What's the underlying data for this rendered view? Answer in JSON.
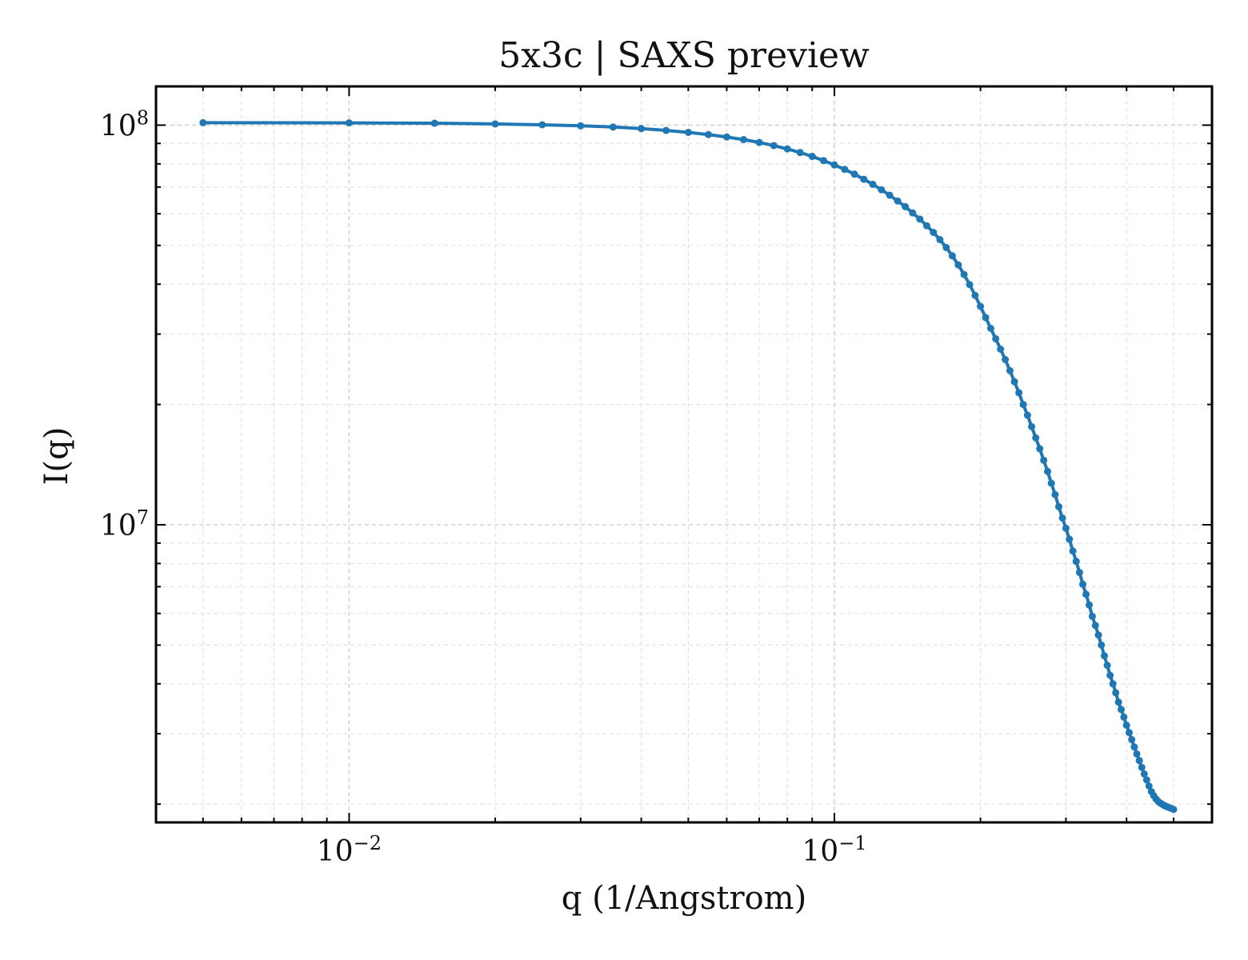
{
  "chart_data": {
    "type": "line",
    "title": "5x3c | SAXS preview",
    "xlabel": "q (1/Angstrom)",
    "ylabel": "I(q)",
    "xscale": "log",
    "yscale": "log",
    "xlim": [
      0.004,
      0.6
    ],
    "ylim": [
      1800000,
      125000000
    ],
    "grid": true,
    "color": "#1f77b4",
    "x_tick_labels": [
      {
        "base": "10",
        "exp": "−2",
        "value": 0.01
      },
      {
        "base": "10",
        "exp": "−1",
        "value": 0.1
      }
    ],
    "y_tick_labels": [
      {
        "base": "10",
        "exp": "8",
        "value": 100000000
      },
      {
        "base": "10",
        "exp": "7",
        "value": 10000000
      }
    ],
    "x": [
      0.005,
      0.01,
      0.015,
      0.02,
      0.025,
      0.03,
      0.035,
      0.04,
      0.045,
      0.05,
      0.055,
      0.06,
      0.065,
      0.07,
      0.075,
      0.08,
      0.085,
      0.09,
      0.095,
      0.1,
      0.105,
      0.11,
      0.115,
      0.12,
      0.125,
      0.13,
      0.135,
      0.14,
      0.145,
      0.15,
      0.155,
      0.16,
      0.165,
      0.17,
      0.175,
      0.18,
      0.185,
      0.19,
      0.195,
      0.2,
      0.205,
      0.21,
      0.215,
      0.22,
      0.225,
      0.23,
      0.235,
      0.24,
      0.245,
      0.25,
      0.255,
      0.26,
      0.265,
      0.27,
      0.275,
      0.28,
      0.285,
      0.29,
      0.295,
      0.3,
      0.305,
      0.31,
      0.315,
      0.32,
      0.325,
      0.33,
      0.335,
      0.34,
      0.345,
      0.35,
      0.355,
      0.36,
      0.365,
      0.37,
      0.375,
      0.38,
      0.385,
      0.39,
      0.395,
      0.4,
      0.405,
      0.41,
      0.415,
      0.42,
      0.425,
      0.43,
      0.435,
      0.44,
      0.445,
      0.45,
      0.455,
      0.46,
      0.465,
      0.47,
      0.475,
      0.48,
      0.485,
      0.49,
      0.495,
      0.5
    ],
    "y": [
      101400000,
      101300000,
      101100000,
      100700000,
      100200000,
      99600000,
      98900000,
      98000000,
      97000000,
      95900000,
      94700000,
      93400000,
      92000000,
      90500000,
      88900000,
      87200000,
      85400000,
      83500000,
      81500000,
      79500000,
      77500000,
      75400000,
      73200000,
      71100000,
      68900000,
      66800000,
      64600000,
      62500000,
      60300000,
      58200000,
      56000000,
      53900000,
      51700000,
      49400000,
      47100000,
      44700000,
      42300000,
      39900000,
      37500000,
      35200000,
      33000000,
      31000000,
      29200000,
      27500000,
      25900000,
      24300000,
      22800000,
      21400000,
      20000000,
      18800000,
      17600000,
      16500000,
      15500000,
      14500000,
      13600000,
      12700000,
      11900000,
      11100000,
      10400000,
      9800000,
      9200000,
      8600000,
      8100000,
      7600000,
      7100000,
      6700000,
      6300000,
      5900000,
      5600000,
      5300000,
      5000000,
      4700000,
      4450000,
      4200000,
      4000000,
      3800000,
      3600000,
      3450000,
      3300000,
      3150000,
      3020000,
      2900000,
      2780000,
      2670000,
      2570000,
      2470000,
      2380000,
      2300000,
      2220000,
      2150000,
      2100000,
      2060000,
      2030000,
      2010000,
      1995000,
      1980000,
      1970000,
      1960000,
      1950000,
      1940000
    ]
  }
}
